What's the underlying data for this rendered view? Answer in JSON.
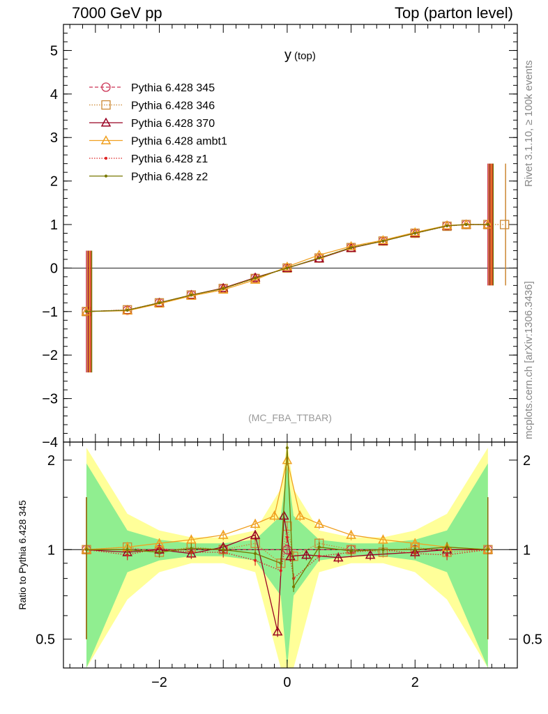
{
  "header": {
    "left": "7000 GeV pp",
    "right": "Top (parton level)"
  },
  "side_labels": {
    "rivet": "Rivet 3.1.10, ≥ 100k events",
    "mcplots": "mcplots.cern.ch [arXiv:1306.3436]"
  },
  "chart_data": [
    {
      "type": "line",
      "title": "y",
      "title_sub": "(top)",
      "watermark": "(MC_FBA_TTBAR)",
      "xlim": [
        -3.5,
        3.6
      ],
      "ylim": [
        -4.0,
        5.6
      ],
      "yticks": [
        -4,
        -3,
        -2,
        -1,
        0,
        1,
        2,
        3,
        4,
        5
      ],
      "ytick_labels": [
        "−4",
        "−3",
        "−2",
        "−1",
        "0",
        "1",
        "2",
        "3",
        "4",
        "5"
      ],
      "legend_position": "top-left",
      "series": [
        {
          "name": "Pythia 6.428 345",
          "color": "#cc3355",
          "marker": "circle",
          "line": "dashed",
          "x": [
            -3.14,
            -2.5,
            -2.0,
            -1.5,
            -1.0,
            -0.5,
            0.0,
            0.5,
            1.0,
            1.5,
            2.0,
            2.5,
            2.8,
            3.14
          ],
          "y": [
            -1.0,
            -0.97,
            -0.8,
            -0.62,
            -0.47,
            -0.23,
            0.0,
            0.23,
            0.47,
            0.62,
            0.8,
            0.97,
            1.0,
            1.0
          ]
        },
        {
          "name": "Pythia 6.428 346",
          "color": "#cc8833",
          "marker": "square",
          "line": "dotted",
          "x": [
            -3.14,
            -2.5,
            -2.0,
            -1.5,
            -1.0,
            -0.5,
            0.0,
            0.5,
            1.0,
            1.5,
            2.0,
            2.5,
            2.8,
            3.14,
            3.4
          ],
          "y": [
            -1.0,
            -0.96,
            -0.8,
            -0.62,
            -0.47,
            -0.24,
            0.0,
            0.23,
            0.47,
            0.62,
            0.8,
            0.96,
            1.0,
            1.0,
            1.0
          ]
        },
        {
          "name": "Pythia 6.428 370",
          "color": "#990022",
          "marker": "triangle",
          "line": "solid",
          "x": [
            -3.14,
            -2.5,
            -2.0,
            -1.5,
            -1.0,
            -0.5,
            0.0,
            0.5,
            1.0,
            1.5,
            2.0,
            2.5,
            2.8,
            3.14
          ],
          "y": [
            -1.0,
            -0.97,
            -0.8,
            -0.62,
            -0.46,
            -0.22,
            0.0,
            0.22,
            0.46,
            0.62,
            0.8,
            0.97,
            1.0,
            1.0
          ]
        },
        {
          "name": "Pythia 6.428 ambt1",
          "color": "#f0a020",
          "marker": "triangle",
          "line": "solid",
          "x": [
            -3.14,
            -2.5,
            -2.0,
            -1.5,
            -1.0,
            -0.5,
            0.0,
            0.5,
            1.0,
            1.5,
            2.0,
            2.5,
            2.8,
            3.14
          ],
          "y": [
            -1.0,
            -0.98,
            -0.82,
            -0.64,
            -0.5,
            -0.27,
            0.03,
            0.3,
            0.5,
            0.64,
            0.82,
            0.98,
            1.0,
            1.0
          ]
        },
        {
          "name": "Pythia 6.428 z1",
          "color": "#dd2222",
          "marker": "dot",
          "line": "dotted",
          "x": [
            -3.14,
            -2.5,
            -2.0,
            -1.5,
            -1.0,
            -0.5,
            0.0,
            0.5,
            1.0,
            1.5,
            2.0,
            2.5,
            2.8,
            3.14
          ],
          "y": [
            -1.0,
            -0.97,
            -0.8,
            -0.62,
            -0.47,
            -0.23,
            0.0,
            0.23,
            0.47,
            0.62,
            0.8,
            0.97,
            1.0,
            1.0
          ]
        },
        {
          "name": "Pythia 6.428 z2",
          "color": "#777700",
          "marker": "dot",
          "line": "solid",
          "x": [
            -3.14,
            -2.5,
            -2.0,
            -1.5,
            -1.0,
            -0.5,
            0.0,
            0.5,
            1.0,
            1.5,
            2.0,
            2.5,
            2.8,
            3.14
          ],
          "y": [
            -1.0,
            -0.97,
            -0.8,
            -0.62,
            -0.47,
            -0.23,
            0.0,
            0.23,
            0.47,
            0.62,
            0.8,
            0.97,
            1.0,
            1.0
          ]
        }
      ]
    },
    {
      "type": "line",
      "ylabel": "Ratio to Pythia 6.428 345",
      "xlim": [
        -3.5,
        3.6
      ],
      "ylim": [
        0.4,
        2.3
      ],
      "log_scale_y": true,
      "xticks": [
        -2,
        0,
        2
      ],
      "xtick_labels": [
        "−2",
        "0",
        "2"
      ],
      "yticks": [
        0.5,
        1,
        2
      ],
      "ytick_labels": [
        "0.5",
        "1",
        "2"
      ],
      "band_colors": {
        "inner": "#90ee90",
        "outer": "#ffff99"
      },
      "bands": {
        "x": [
          -3.14,
          -2.5,
          -2.0,
          -1.5,
          -1.0,
          -0.5,
          -0.1,
          0.0,
          0.1,
          0.5,
          1.0,
          1.5,
          2.0,
          2.5,
          3.14
        ],
        "inner_half": [
          0.95,
          0.16,
          0.08,
          0.05,
          0.05,
          0.08,
          0.3,
          0.9,
          0.3,
          0.08,
          0.05,
          0.05,
          0.08,
          0.16,
          0.95
        ],
        "outer_half": [
          1.2,
          0.32,
          0.16,
          0.1,
          0.1,
          0.16,
          0.6,
          1.3,
          0.6,
          0.16,
          0.1,
          0.1,
          0.16,
          0.32,
          1.2
        ]
      },
      "series": [
        {
          "name": "Pythia 6.428 345",
          "color": "#cc3355",
          "x": [
            -3.14,
            -2.0,
            -1.0,
            0.0,
            1.0,
            2.0,
            3.14
          ],
          "y": [
            1.0,
            1.0,
            1.0,
            1.0,
            1.0,
            1.0,
            1.0
          ]
        },
        {
          "name": "Pythia 6.428 346",
          "color": "#cc8833",
          "x": [
            -3.14,
            -2.5,
            -2.0,
            -1.5,
            -1.0,
            -0.5,
            -0.1,
            0.0,
            0.1,
            0.5,
            1.0,
            1.5,
            2.0,
            2.5,
            3.14
          ],
          "y": [
            1.0,
            1.02,
            0.98,
            1.02,
            1.0,
            1.05,
            0.9,
            1.2,
            0.95,
            1.05,
            1.0,
            0.98,
            1.02,
            0.98,
            1.0
          ]
        },
        {
          "name": "Pythia 6.428 370",
          "color": "#990022",
          "x": [
            -3.14,
            -2.5,
            -2.0,
            -1.5,
            -1.0,
            -0.5,
            -0.15,
            -0.05,
            0.05,
            0.3,
            0.8,
            1.3,
            2.0,
            2.5,
            3.14
          ],
          "y": [
            1.0,
            0.98,
            1.0,
            0.97,
            1.02,
            1.12,
            0.53,
            1.3,
            0.95,
            0.96,
            0.94,
            0.96,
            0.98,
            1.0,
            1.0
          ]
        },
        {
          "name": "Pythia 6.428 ambt1",
          "color": "#f0a020",
          "x": [
            -3.14,
            -2.5,
            -2.0,
            -1.5,
            -1.0,
            -0.5,
            -0.2,
            0.0,
            0.2,
            0.5,
            1.0,
            1.5,
            2.0,
            2.5,
            3.14
          ],
          "y": [
            1.0,
            1.02,
            1.05,
            1.08,
            1.12,
            1.22,
            1.3,
            2.0,
            1.3,
            1.22,
            1.12,
            1.08,
            1.05,
            1.02,
            1.0
          ]
        },
        {
          "name": "Pythia 6.428 z1",
          "color": "#dd2222",
          "x": [
            -3.14,
            -2.5,
            -2.0,
            -1.5,
            -1.0,
            -0.5,
            -0.1,
            0.0,
            0.1,
            0.5,
            1.0,
            1.5,
            2.0,
            2.5,
            3.14
          ],
          "y": [
            1.0,
            0.96,
            1.01,
            0.98,
            0.98,
            0.92,
            0.85,
            1.1,
            0.8,
            0.95,
            0.98,
            1.0,
            0.97,
            0.96,
            1.0
          ]
        },
        {
          "name": "Pythia 6.428 z2",
          "color": "#777700",
          "x": [
            -3.14,
            -2.5,
            -2.0,
            -1.5,
            -1.0,
            -0.5,
            -0.1,
            0.0,
            0.1,
            0.5,
            1.0,
            1.5,
            2.0,
            2.5,
            3.14
          ],
          "y": [
            1.0,
            1.0,
            0.98,
            1.01,
            1.0,
            0.97,
            0.9,
            2.2,
            0.75,
            1.02,
            0.99,
            1.0,
            1.0,
            1.02,
            1.0
          ]
        }
      ]
    }
  ]
}
